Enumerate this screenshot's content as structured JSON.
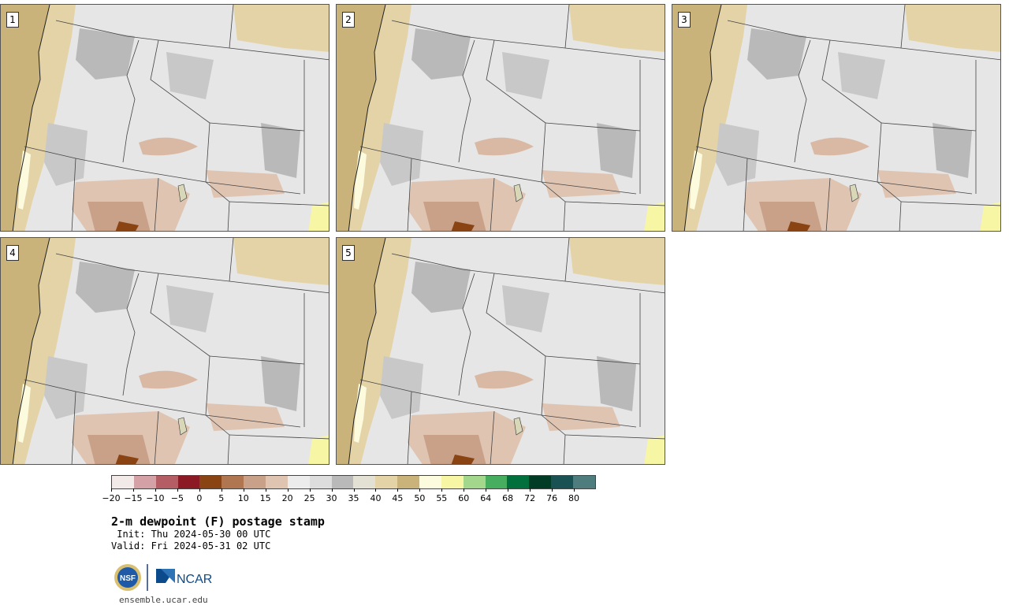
{
  "panels": [
    {
      "label": "1"
    },
    {
      "label": "2"
    },
    {
      "label": "3"
    },
    {
      "label": "4"
    },
    {
      "label": "5"
    }
  ],
  "colorbar": {
    "colors": [
      "#f2e9e9",
      "#d4a1a6",
      "#b45d64",
      "#8c1a24",
      "#8a4414",
      "#b07650",
      "#c9a088",
      "#e0c4b2",
      "#ececec",
      "#dddddd",
      "#b9b9b9",
      "#e2e1d4",
      "#e3d3a7",
      "#c9b37a",
      "#fdfbdd",
      "#f7f6a4",
      "#a3d78c",
      "#47ad5f",
      "#01703d",
      "#023c26",
      "#1a5153",
      "#4f7d7e"
    ],
    "tick_labels": [
      "−20",
      "−15",
      "−10",
      "−5",
      "0",
      "5",
      "10",
      "15",
      "20",
      "25",
      "30",
      "35",
      "40",
      "45",
      "50",
      "55",
      "60",
      "64",
      "68",
      "72",
      "76",
      "80"
    ]
  },
  "title": "2-m dewpoint (F) postage stamp",
  "init": " Init: Thu 2024-05-30 00 UTC",
  "valid": "Valid: Fri 2024-05-31 02 UTC",
  "logo": {
    "left": "NSF",
    "right": "NCAR"
  },
  "url": "ensemble.ucar.edu"
}
